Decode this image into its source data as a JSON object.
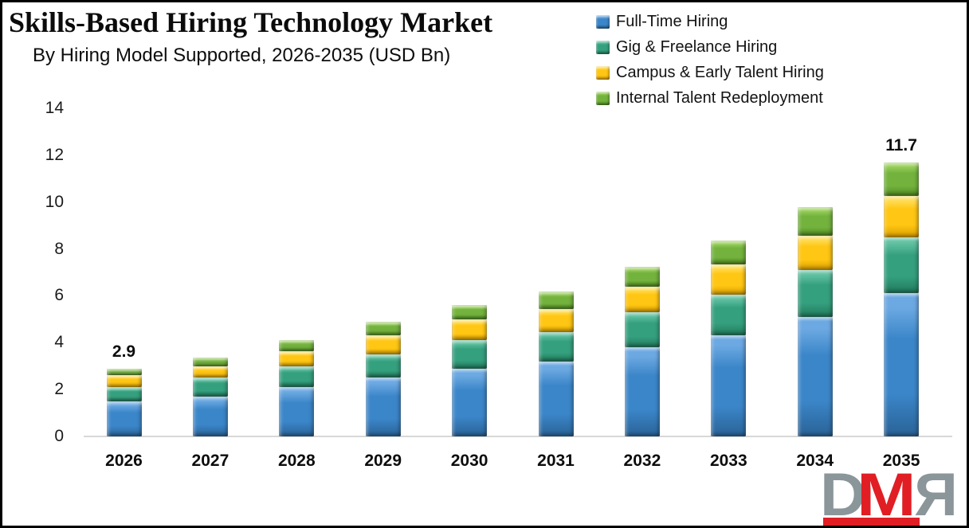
{
  "header": {
    "title": "Skills-Based Hiring Technology Market",
    "subtitle": "By Hiring Model Supported, 2026-2035 (USD Bn)"
  },
  "chart_data": {
    "type": "bar",
    "stacked": true,
    "title": "Skills-Based Hiring Technology Market",
    "subtitle": "By Hiring Model Supported, 2026-2035 (USD Bn)",
    "unit": "USD Bn",
    "categories": [
      "2026",
      "2027",
      "2028",
      "2029",
      "2030",
      "2031",
      "2032",
      "2033",
      "2034",
      "2035"
    ],
    "series": [
      {
        "name": "Full-Time Hiring",
        "color": "#3b86c9",
        "color_light": "#6ca9e2",
        "color_dark": "#2a6296",
        "values": [
          1.5,
          1.7,
          2.1,
          2.5,
          2.9,
          3.2,
          3.8,
          4.3,
          5.1,
          6.1
        ]
      },
      {
        "name": "Gig & Freelance Hiring",
        "color": "#35a07e",
        "color_light": "#62c2a2",
        "color_dark": "#20795b",
        "values": [
          0.6,
          0.8,
          0.9,
          1.0,
          1.2,
          1.25,
          1.5,
          1.75,
          2.0,
          2.4
        ]
      },
      {
        "name": "Campus & Early Talent Hiring",
        "color": "#ffc613",
        "color_light": "#ffde5a",
        "color_dark": "#d99f00",
        "values": [
          0.5,
          0.5,
          0.65,
          0.8,
          0.9,
          1.0,
          1.1,
          1.3,
          1.45,
          1.75
        ]
      },
      {
        "name": "Internal Talent Redeployment",
        "color": "#73b33d",
        "color_light": "#9ed25f",
        "color_dark": "#4f8a20",
        "values": [
          0.3,
          0.35,
          0.45,
          0.6,
          0.6,
          0.75,
          0.85,
          1.0,
          1.25,
          1.45
        ]
      }
    ],
    "totals": [
      2.9,
      3.35,
      4.1,
      4.9,
      5.6,
      6.2,
      7.25,
      8.35,
      9.8,
      11.7
    ],
    "value_labels": [
      {
        "category": "2026",
        "text": "2.9"
      },
      {
        "category": "2035",
        "text": "11.7"
      }
    ],
    "ylim": [
      0,
      14
    ],
    "yticks": [
      0,
      2,
      4,
      6,
      8,
      10,
      12,
      14
    ],
    "grid": false,
    "legend_position": "top-right"
  },
  "logo": {
    "letters": {
      "d": "D",
      "m": "M",
      "r": "R"
    },
    "gray": "#8a9699",
    "red": "#e01e24"
  }
}
